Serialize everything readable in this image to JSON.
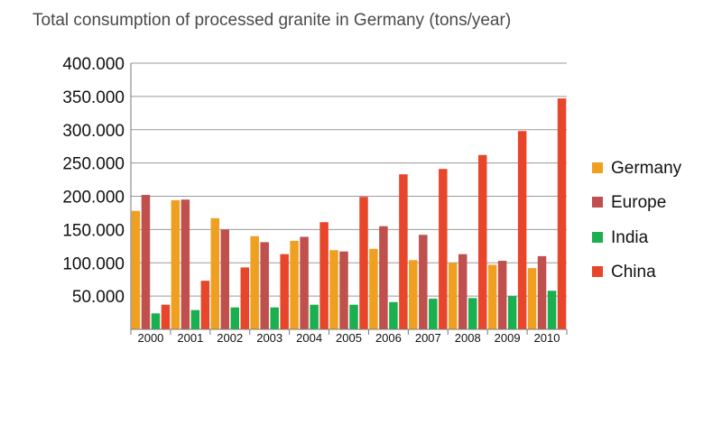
{
  "chart_data": {
    "type": "bar",
    "title": "Total consumption of processed granite in Germany (tons/year)",
    "xlabel": "",
    "ylabel": "",
    "categories": [
      "2000",
      "2001",
      "2002",
      "2003",
      "2004",
      "2005",
      "2006",
      "2007",
      "2008",
      "2009",
      "2010"
    ],
    "ylim": [
      0,
      400000
    ],
    "yticks": [
      50000,
      100000,
      150000,
      200000,
      250000,
      300000,
      350000,
      400000
    ],
    "ytick_labels": [
      "50.000",
      "100.000",
      "150.000",
      "200.000",
      "250.000",
      "300.000",
      "350.000",
      "400.000"
    ],
    "grid": true,
    "legend_position": "right",
    "series": [
      {
        "name": "Germany",
        "color": "#f0a020",
        "values": [
          178000,
          194000,
          167000,
          140000,
          133000,
          119000,
          121000,
          104000,
          100000,
          97000,
          92000
        ]
      },
      {
        "name": "Europe",
        "color": "#c0504d",
        "values": [
          202000,
          195000,
          150000,
          131000,
          139000,
          117000,
          155000,
          142000,
          113000,
          103000,
          110000
        ]
      },
      {
        "name": "India",
        "color": "#1ab050",
        "values": [
          24000,
          29000,
          33000,
          33000,
          37000,
          37000,
          41000,
          46000,
          47000,
          50000,
          58000
        ]
      },
      {
        "name": "China",
        "color": "#e8462a",
        "values": [
          37000,
          73000,
          93000,
          113000,
          161000,
          199000,
          233000,
          241000,
          262000,
          298000,
          347000
        ]
      }
    ]
  }
}
